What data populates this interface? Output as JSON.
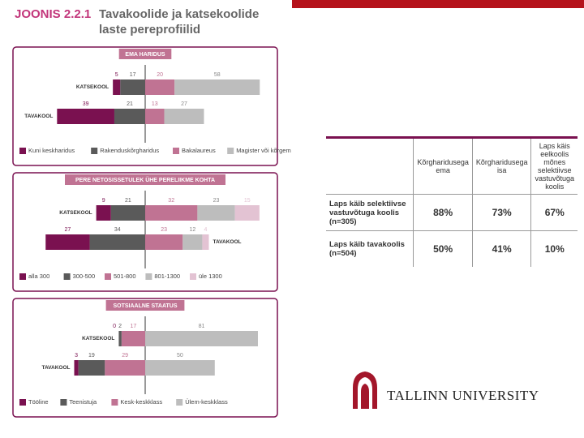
{
  "header": {
    "label": "JOONIS 2.2.1",
    "title": "Tavakoolide ja katsekoolide laste pereprofiilid"
  },
  "chart_data": [
    {
      "type": "diverging-bar",
      "title": "EMA HARIDUS",
      "categories": [
        "KATSEKOOL",
        "TAVAKOOL"
      ],
      "xlim": [
        -90,
        90
      ],
      "series": [
        {
          "name": "Kuni keskharidus",
          "color": "#7a1150",
          "side": "left",
          "values": [
            5,
            39
          ]
        },
        {
          "name": "Rakenduskõrgharidus",
          "color": "#5a5a5a",
          "side": "left",
          "values": [
            17,
            21
          ]
        },
        {
          "name": "Bakalaureus",
          "color": "#c07393",
          "side": "right",
          "values": [
            20,
            13
          ]
        },
        {
          "name": "Magister või kõrgem",
          "color": "#bdbdbd",
          "side": "right",
          "values": [
            58,
            27
          ]
        }
      ]
    },
    {
      "type": "diverging-bar",
      "title": "PERE NETOSISSETULEK ÜHE PERELIIKME KOHTA",
      "categories": [
        "KATSEKOOL",
        "TAVAKOOL"
      ],
      "xlim": [
        -81,
        81
      ],
      "series": [
        {
          "name": "alla 300",
          "color": "#7a1150",
          "side": "left",
          "values": [
            9,
            27
          ]
        },
        {
          "name": "300-500",
          "color": "#5a5a5a",
          "side": "left",
          "values": [
            21,
            34
          ]
        },
        {
          "name": "501-800",
          "color": "#c07393",
          "side": "right",
          "values": [
            32,
            23
          ]
        },
        {
          "name": "801-1300",
          "color": "#bdbdbd",
          "side": "right",
          "values": [
            23,
            12
          ]
        },
        {
          "name": "üle 1300",
          "color": "#e3c3d3",
          "side": "right",
          "values": [
            15,
            4
          ]
        }
      ]
    },
    {
      "type": "diverging-bar",
      "title": "SOTSIAALNE STAATUS",
      "categories": [
        "KATSEKOOL",
        "TAVAKOOL"
      ],
      "xlim": [
        -95,
        95
      ],
      "series": [
        {
          "name": "Tööline",
          "color": "#7a1150",
          "side": "left",
          "values": [
            0,
            3
          ]
        },
        {
          "name": "Teenistuja",
          "color": "#5a5a5a",
          "side": "left",
          "values": [
            2,
            19
          ]
        },
        {
          "name": "Kesk-keskklass",
          "color": "#c07393",
          "side": "left",
          "values": [
            17,
            29
          ]
        },
        {
          "name": "Ülem-keskklass",
          "color": "#bdbdbd",
          "side": "right",
          "values": [
            81,
            50
          ]
        }
      ]
    }
  ],
  "table": {
    "header": [
      "Kõrgharidusega ema",
      "Kõrgharidusega isa",
      "Laps käis eelkoolis mõnes selektiivse vastuvõtuga koolis"
    ],
    "rows": [
      [
        "Laps käib selektiivse vastuvõtuga koolis (n=305)",
        "88%",
        "73%",
        "67%"
      ],
      [
        "Laps käib tavakoolis (n=504)",
        "50%",
        "41%",
        "10%"
      ]
    ]
  },
  "logo": {
    "text": "TALLINN UNIVERSITY"
  }
}
